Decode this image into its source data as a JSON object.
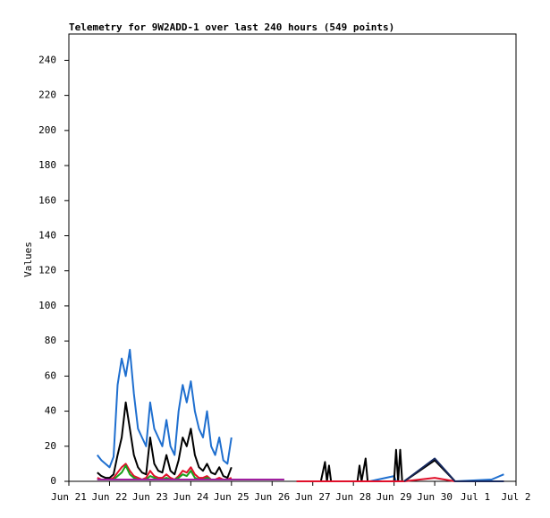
{
  "chart_data": {
    "type": "line",
    "title": "Telemetry for 9W2ADD-1 over last 240 hours (549 points)",
    "y_label": "Values",
    "xlim": [
      0,
      11
    ],
    "xticks": [
      {
        "value": 0,
        "label": "Jun 21"
      },
      {
        "value": 1,
        "label": "Jun 22"
      },
      {
        "value": 2,
        "label": "Jun 23"
      },
      {
        "value": 3,
        "label": "Jun 24"
      },
      {
        "value": 4,
        "label": "Jun 25"
      },
      {
        "value": 5,
        "label": "Jun 26"
      },
      {
        "value": 6,
        "label": "Jun 27"
      },
      {
        "value": 7,
        "label": "Jun 28"
      },
      {
        "value": 8,
        "label": "Jun 29"
      },
      {
        "value": 9,
        "label": "Jun 30"
      },
      {
        "value": 10,
        "label": "Jul 1"
      },
      {
        "value": 11,
        "label": "Jul 2"
      }
    ],
    "ylim": [
      0,
      255
    ],
    "yticks": [
      0,
      20,
      40,
      60,
      80,
      100,
      120,
      140,
      160,
      180,
      200,
      220,
      240
    ],
    "x": [
      0.7,
      0.8,
      0.9,
      1.0,
      1.1,
      1.2,
      1.3,
      1.4,
      1.5,
      1.6,
      1.7,
      1.8,
      1.9,
      2.0,
      2.1,
      2.2,
      2.3,
      2.4,
      2.5,
      2.6,
      2.7,
      2.8,
      2.9,
      3.0,
      3.1,
      3.2,
      3.3,
      3.4,
      3.5,
      3.6,
      3.7,
      3.8,
      3.9,
      4.0,
      4.7,
      5.3,
      5.6,
      6.2,
      6.3,
      6.35,
      6.4,
      6.45,
      6.5,
      7.1,
      7.15,
      7.2,
      7.3,
      7.35,
      7.4,
      8.0,
      8.05,
      8.1,
      8.15,
      8.2,
      8.25,
      9.0,
      9.5,
      10.4,
      10.7
    ],
    "series": [
      {
        "color": "#1f6fcf",
        "values": [
          15,
          12,
          10,
          8,
          14,
          55,
          70,
          60,
          75,
          50,
          30,
          25,
          20,
          45,
          30,
          25,
          20,
          35,
          20,
          15,
          40,
          55,
          45,
          57,
          40,
          30,
          25,
          40,
          20,
          15,
          25,
          12,
          10,
          25,
          null,
          null,
          0,
          0,
          0,
          0,
          0,
          0,
          0,
          0,
          0,
          0,
          0,
          0,
          0,
          3,
          0,
          0,
          0,
          0,
          0,
          13,
          0,
          1,
          4
        ]
      },
      {
        "color": "#000000",
        "values": [
          5,
          3,
          2,
          2,
          4,
          15,
          25,
          45,
          30,
          15,
          8,
          5,
          4,
          25,
          10,
          6,
          5,
          15,
          6,
          4,
          12,
          25,
          20,
          30,
          15,
          8,
          6,
          10,
          5,
          4,
          8,
          3,
          2,
          8,
          null,
          null,
          0,
          0,
          11,
          0,
          9,
          0,
          0,
          0,
          9,
          0,
          13,
          0,
          0,
          0,
          18,
          0,
          18,
          0,
          0,
          12,
          0,
          0,
          0
        ]
      },
      {
        "color": "#e0102a",
        "values": [
          2,
          1,
          1,
          1,
          2,
          5,
          8,
          10,
          6,
          3,
          2,
          1,
          2,
          6,
          3,
          2,
          2,
          4,
          2,
          1,
          3,
          6,
          5,
          8,
          4,
          2,
          2,
          3,
          1,
          1,
          2,
          1,
          1,
          2,
          null,
          null,
          0,
          0,
          0,
          0,
          0,
          0,
          0,
          0,
          0,
          0,
          0,
          0,
          0,
          0,
          0,
          0,
          0,
          0,
          0,
          2,
          0,
          0,
          0
        ]
      },
      {
        "color": "#1aa01a",
        "values": [
          1,
          1,
          1,
          1,
          1,
          3,
          5,
          9,
          4,
          2,
          1,
          1,
          1,
          3,
          2,
          1,
          1,
          2,
          1,
          1,
          2,
          4,
          3,
          6,
          2,
          1,
          1,
          2,
          1,
          1,
          1,
          1,
          1,
          1,
          null,
          null,
          null,
          null,
          null,
          null,
          null,
          null,
          null,
          null,
          null,
          null,
          null,
          null,
          null,
          null,
          null,
          null,
          null,
          null,
          null,
          null,
          null,
          null,
          null
        ]
      },
      {
        "color": "#a020a0",
        "values": [
          1,
          1,
          1,
          1,
          1,
          1,
          1,
          1,
          1,
          1,
          1,
          1,
          1,
          1,
          1,
          1,
          1,
          1,
          1,
          1,
          1,
          1,
          1,
          1,
          1,
          1,
          1,
          1,
          1,
          1,
          1,
          1,
          1,
          1,
          1,
          1,
          null,
          null,
          null,
          null,
          null,
          null,
          null,
          null,
          null,
          null,
          null,
          null,
          null,
          null,
          null,
          null,
          null,
          null,
          null,
          null,
          null,
          null,
          null
        ]
      },
      {
        "color": "#1a2a5c",
        "values": [
          null,
          null,
          null,
          null,
          null,
          null,
          null,
          null,
          null,
          null,
          null,
          null,
          null,
          null,
          null,
          null,
          null,
          null,
          null,
          null,
          null,
          null,
          null,
          null,
          null,
          null,
          null,
          null,
          null,
          null,
          null,
          null,
          null,
          null,
          null,
          null,
          null,
          null,
          null,
          null,
          null,
          null,
          null,
          null,
          null,
          null,
          null,
          null,
          null,
          null,
          null,
          null,
          null,
          null,
          0,
          13,
          0,
          0,
          0
        ]
      }
    ]
  }
}
